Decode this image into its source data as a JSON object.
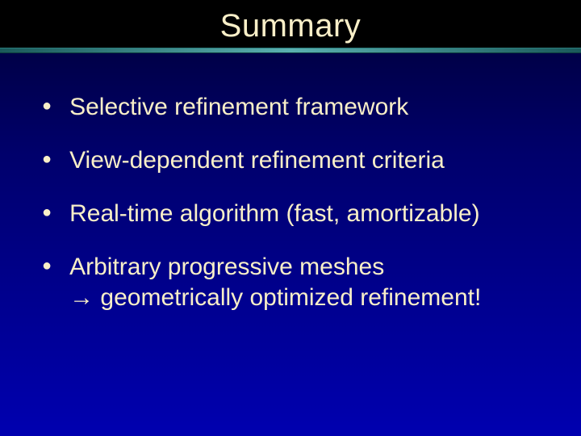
{
  "slide": {
    "title": "Summary",
    "bullets": [
      {
        "text": "Selective refinement framework"
      },
      {
        "text": "View-dependent refinement criteria"
      },
      {
        "text": "Real-time algorithm (fast, amortizable)"
      },
      {
        "text_line1": "Arbitrary progressive meshes",
        "text_line2_prefix": "→",
        "text_line2": " geometrically optimized refinement!"
      }
    ]
  },
  "style": {
    "title_color": "#f9efc8",
    "body_text_color": "#f9efc8",
    "title_bg": "#000000",
    "divider_gradient": [
      "#1a5a5a",
      "#5ab0b0",
      "#1a5a5a"
    ],
    "body_bg_gradient": [
      "#000022",
      "#000044",
      "#00006b",
      "#0000b0"
    ],
    "title_fontsize": 40,
    "body_fontsize": 30,
    "bullet_marker": "●",
    "font_family": "Arial"
  }
}
